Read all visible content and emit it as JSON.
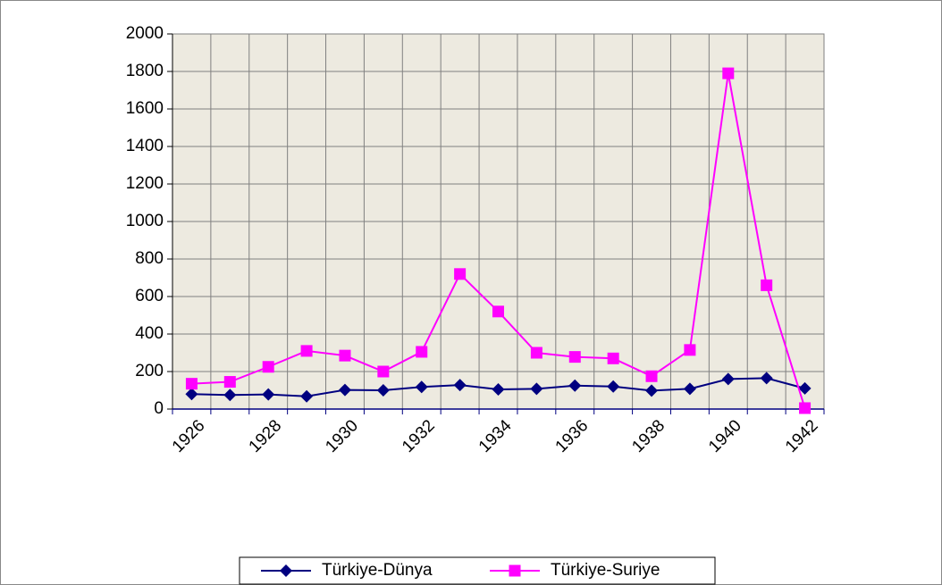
{
  "chart_data": {
    "type": "line",
    "categories": [
      "1926",
      null,
      "1928",
      null,
      "1930",
      null,
      "1932",
      null,
      "1934",
      null,
      "1936",
      null,
      "1938",
      null,
      "1940",
      null,
      "1942"
    ],
    "series": [
      {
        "name": "Türkiye-Dünya",
        "color": "#000080",
        "marker": "diamond",
        "values": [
          80,
          75,
          78,
          68,
          102,
          100,
          118,
          128,
          105,
          108,
          125,
          120,
          98,
          108,
          160,
          165,
          110
        ]
      },
      {
        "name": "Türkiye-Suriye",
        "color": "#ff00ff",
        "marker": "square",
        "values": [
          135,
          145,
          225,
          310,
          285,
          200,
          305,
          720,
          520,
          300,
          278,
          270,
          175,
          315,
          1790,
          660,
          5
        ]
      }
    ],
    "ylim": [
      0,
      2000
    ],
    "yticks": [
      0,
      200,
      400,
      600,
      800,
      1000,
      1200,
      1400,
      1600,
      1800,
      2000
    ],
    "grid": true,
    "legend": "bottom"
  }
}
